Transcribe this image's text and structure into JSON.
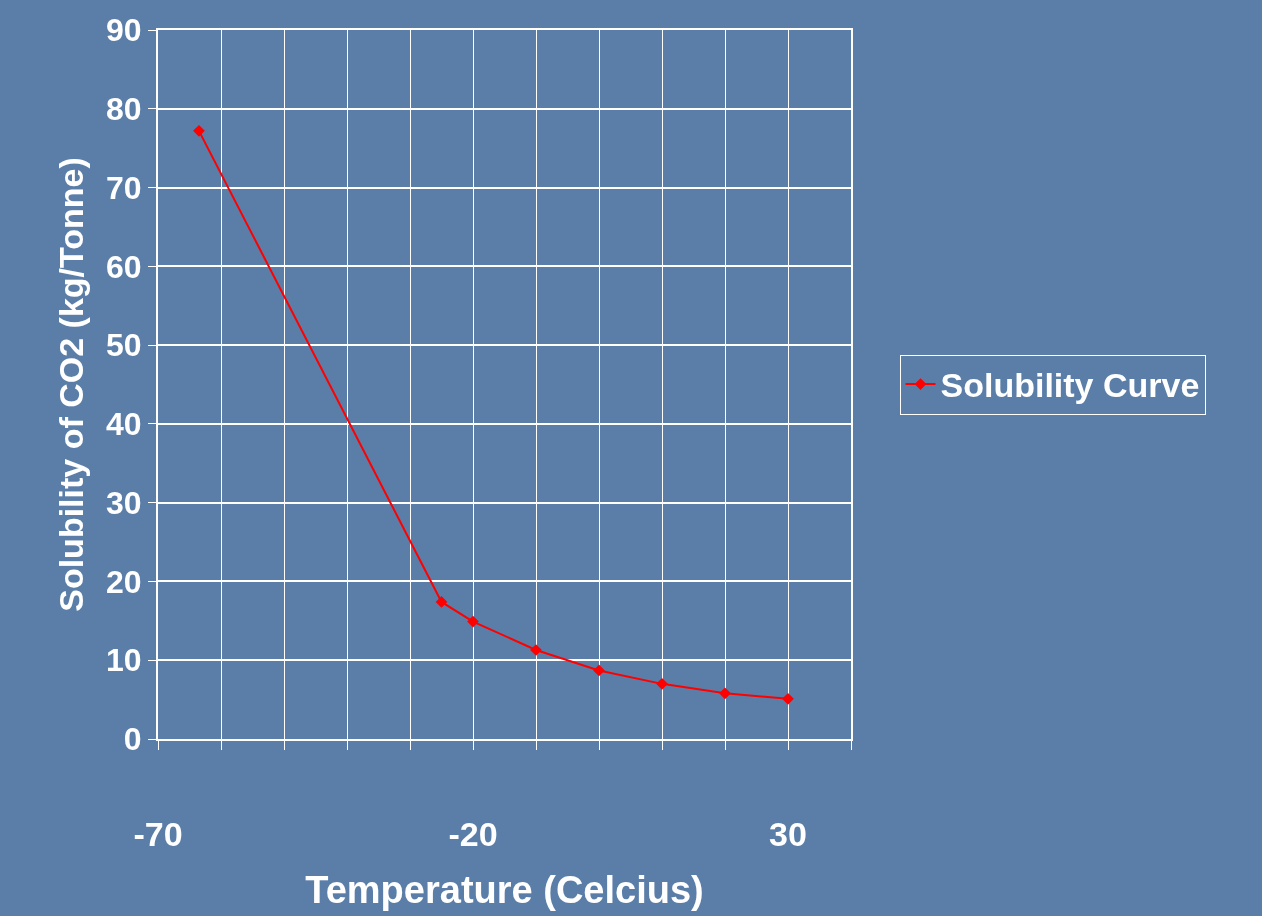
{
  "chart_data": {
    "type": "line",
    "xlabel": "Temperature (Celcius)",
    "ylabel": "Solubility of CO2 (kg/Tonne)",
    "x": [
      -63.5,
      -25,
      -20,
      -10,
      0,
      10,
      20,
      30
    ],
    "series": [
      {
        "name": "Solubility Curve",
        "color": "#ff0000",
        "values": [
          77.2,
          17.4,
          14.9,
          11.3,
          8.7,
          7.0,
          5.8,
          5.1
        ]
      }
    ],
    "xlim": [
      -70,
      40
    ],
    "xticks": [
      -70,
      {
        "value": -60,
        "label": null
      },
      {
        "value": -50,
        "label": null
      },
      {
        "value": -40,
        "label": null
      },
      {
        "value": -30,
        "label": null
      },
      -20,
      {
        "value": -10,
        "label": null
      },
      {
        "value": 0,
        "label": null
      },
      {
        "value": 10,
        "label": null
      },
      {
        "value": 20,
        "label": null
      },
      30,
      {
        "value": 40,
        "label": null
      }
    ],
    "ylim": [
      0,
      90
    ],
    "yticks": [
      0,
      10,
      20,
      30,
      40,
      50,
      60,
      70,
      80,
      90
    ],
    "grid": true,
    "legend": "right",
    "marker": "diamond",
    "line_style": "solid"
  }
}
